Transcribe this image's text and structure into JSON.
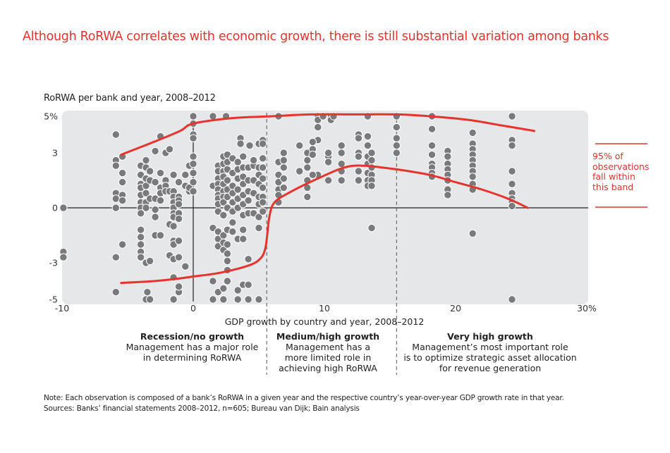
{
  "title": "Although RoRWA correlates with economic growth, there is still substantial variation among banks",
  "chart_data": {
    "type": "scatter",
    "title": "Although RoRWA correlates with economic growth, there is still substantial variation among banks",
    "ylabel": "RoRWA per bank and year, 2008–2012",
    "xlabel": "GDP growth by country and year, 2008–2012",
    "xlim": [
      -10,
      30
    ],
    "ylim": [
      -5,
      5
    ],
    "x_ticks": [
      {
        "value": -10,
        "label": "-10"
      },
      {
        "value": 0,
        "label": "0"
      },
      {
        "value": 10,
        "label": "10"
      },
      {
        "value": 20,
        "label": "20"
      },
      {
        "value": 30,
        "label": "30%"
      }
    ],
    "y_ticks": [
      {
        "value": 5,
        "label": "5%"
      },
      {
        "value": 3,
        "label": "3"
      },
      {
        "value": 0,
        "label": "0"
      },
      {
        "value": -3,
        "label": "-3"
      },
      {
        "value": -5,
        "label": "-5"
      }
    ],
    "grid": false,
    "zone_dividers_x": [
      5.6,
      15.5
    ],
    "colors": {
      "points": "#7a7a7c",
      "band": "#e8322c",
      "plot_bg": "#e6e7e8",
      "axis": "#222222"
    },
    "band_label": "95% of observations fall within this band",
    "band": {
      "upper": [
        [
          -5.5,
          2.9
        ],
        [
          -3,
          3.6
        ],
        [
          -1,
          4.2
        ],
        [
          0,
          4.6
        ],
        [
          3,
          4.9
        ],
        [
          6,
          5.0
        ],
        [
          9,
          5.1
        ],
        [
          12,
          5.1
        ],
        [
          15.5,
          5.1
        ],
        [
          18,
          5.0
        ],
        [
          21,
          4.8
        ],
        [
          23.5,
          4.5
        ],
        [
          26,
          4.2
        ]
      ],
      "lower": [
        [
          -5.5,
          -4.1
        ],
        [
          -3,
          -4.0
        ],
        [
          -1,
          -3.85
        ],
        [
          0,
          -3.75
        ],
        [
          2,
          -3.55
        ],
        [
          4,
          -3.2
        ],
        [
          5,
          -2.85
        ],
        [
          5.5,
          -2.2
        ],
        [
          5.8,
          -0.5
        ],
        [
          6.2,
          0.3
        ],
        [
          7.5,
          0.9
        ],
        [
          9.5,
          1.6
        ],
        [
          11.5,
          2.2
        ],
        [
          13,
          2.3
        ],
        [
          15.5,
          2.1
        ],
        [
          18,
          1.8
        ],
        [
          20,
          1.4
        ],
        [
          22,
          1.0
        ],
        [
          24,
          0.5
        ],
        [
          25.5,
          0.0
        ]
      ]
    },
    "points": [
      [
        -9.9,
        0
      ],
      [
        -9.9,
        -2.4
      ],
      [
        -9.9,
        -2.7
      ],
      [
        -5.9,
        4.0
      ],
      [
        -5.9,
        2.6
      ],
      [
        -5.9,
        2.3
      ],
      [
        -5.9,
        0.8
      ],
      [
        -5.9,
        0.5
      ],
      [
        -5.9,
        0
      ],
      [
        -5.9,
        -2.7
      ],
      [
        -5.9,
        -4.6
      ],
      [
        -5.4,
        2.8
      ],
      [
        -5.4,
        1.9
      ],
      [
        -5.4,
        1.4
      ],
      [
        -5.4,
        0.7
      ],
      [
        -5.4,
        0.4
      ],
      [
        -5.4,
        -2.0
      ],
      [
        -4.0,
        2.3
      ],
      [
        -4.0,
        1.8
      ],
      [
        -4.0,
        1.3
      ],
      [
        -4.0,
        1.1
      ],
      [
        -4.0,
        0.7
      ],
      [
        -4.0,
        0.3
      ],
      [
        -4.0,
        0
      ],
      [
        -4.0,
        -0.3
      ],
      [
        -4.0,
        -1.2
      ],
      [
        -4.0,
        -1.6
      ],
      [
        -4.0,
        -2.0
      ],
      [
        -4.0,
        -2.4
      ],
      [
        -4.0,
        -2.7
      ],
      [
        -3.6,
        2.6
      ],
      [
        -3.6,
        2.2
      ],
      [
        -3.6,
        1.6
      ],
      [
        -3.6,
        1.2
      ],
      [
        -3.6,
        0.8
      ],
      [
        -3.6,
        0.3
      ],
      [
        -3.6,
        0
      ],
      [
        -3.6,
        -3.0
      ],
      [
        -3.6,
        -5.0
      ],
      [
        -3.3,
        2.0
      ],
      [
        -3.3,
        1.5
      ],
      [
        -3.3,
        0.5
      ],
      [
        -3.3,
        -2.9
      ],
      [
        -3.3,
        -5.0
      ],
      [
        -3.5,
        -4.6
      ],
      [
        -2.9,
        3.1
      ],
      [
        -2.9,
        1.4
      ],
      [
        -2.9,
        0.5
      ],
      [
        -2.9,
        -0.1
      ],
      [
        -2.9,
        -0.5
      ],
      [
        -2.9,
        -1.5
      ],
      [
        -2.5,
        3.9
      ],
      [
        -2.5,
        1.9
      ],
      [
        -2.5,
        1.1
      ],
      [
        -2.5,
        0.8
      ],
      [
        -2.5,
        0.4
      ],
      [
        -2.5,
        -1.5
      ],
      [
        -2.1,
        3.0
      ],
      [
        -2.1,
        1.5
      ],
      [
        -2.1,
        1.2
      ],
      [
        -2.1,
        0.9
      ],
      [
        -1.8,
        3.2
      ],
      [
        -1.8,
        0.9
      ],
      [
        -1.8,
        -0.9
      ],
      [
        -1.8,
        -2.6
      ],
      [
        -1.5,
        1.8
      ],
      [
        -1.5,
        0.9
      ],
      [
        -1.5,
        0.6
      ],
      [
        -1.5,
        0.3
      ],
      [
        -1.5,
        0
      ],
      [
        -1.5,
        -0.3
      ],
      [
        -1.5,
        -0.5
      ],
      [
        -1.5,
        -1.0
      ],
      [
        -1.5,
        -1.8
      ],
      [
        -1.5,
        -2.0
      ],
      [
        -1.5,
        -2.8
      ],
      [
        -1.5,
        -3.8
      ],
      [
        -1.5,
        -5.0
      ],
      [
        -1.1,
        1.4
      ],
      [
        -1.1,
        0.6
      ],
      [
        -1.1,
        0.4
      ],
      [
        -1.1,
        0.2
      ],
      [
        -1.1,
        -0.3
      ],
      [
        -1.1,
        -0.6
      ],
      [
        -1.1,
        -1.8
      ],
      [
        -1.1,
        -2.7
      ],
      [
        -1.1,
        -4.6
      ],
      [
        -1.1,
        -4.3
      ],
      [
        -0.6,
        -3.2
      ],
      [
        -0.6,
        1.8
      ],
      [
        -0.6,
        1.2
      ],
      [
        -0.3,
        2.3
      ],
      [
        -0.3,
        0.9
      ],
      [
        -0.3,
        1.1
      ],
      [
        0,
        5.0
      ],
      [
        0,
        4.6
      ],
      [
        0,
        4.0
      ],
      [
        0,
        3.8
      ],
      [
        0,
        2.8
      ],
      [
        0,
        2.4
      ],
      [
        0,
        1.9
      ],
      [
        0,
        1.4
      ],
      [
        0,
        0.9
      ],
      [
        1.5,
        1.2
      ],
      [
        1.5,
        -1.1
      ],
      [
        1.5,
        -4.0
      ],
      [
        1.5,
        -5.0
      ],
      [
        1.9,
        2.3
      ],
      [
        1.9,
        2.0
      ],
      [
        1.9,
        1.6
      ],
      [
        1.9,
        1.3
      ],
      [
        1.9,
        1.0
      ],
      [
        1.9,
        0.7
      ],
      [
        1.9,
        0.5
      ],
      [
        1.9,
        0.2
      ],
      [
        1.9,
        -0.2
      ],
      [
        1.9,
        -1.3
      ],
      [
        1.9,
        -1.7
      ],
      [
        1.9,
        -2.1
      ],
      [
        1.9,
        -4.6
      ],
      [
        2.3,
        2.8
      ],
      [
        2.3,
        2.4
      ],
      [
        2.3,
        2.0
      ],
      [
        2.3,
        1.7
      ],
      [
        2.3,
        1.3
      ],
      [
        2.3,
        0.9
      ],
      [
        2.3,
        0.6
      ],
      [
        2.3,
        0.3
      ],
      [
        2.3,
        -0.4
      ],
      [
        2.3,
        -1.5
      ],
      [
        2.3,
        -1.9
      ],
      [
        2.3,
        -2.3
      ],
      [
        2.3,
        -4.4
      ],
      [
        2.3,
        -5.0
      ],
      [
        2.6,
        2.9
      ],
      [
        2.6,
        2.5
      ],
      [
        2.6,
        2.1
      ],
      [
        2.6,
        1.5
      ],
      [
        2.6,
        1.0
      ],
      [
        2.6,
        0.6
      ],
      [
        2.6,
        0
      ],
      [
        2.6,
        -1.2
      ],
      [
        2.6,
        -2.0
      ],
      [
        2.6,
        -2.5
      ],
      [
        2.6,
        -2.9
      ],
      [
        2.6,
        -3.4
      ],
      [
        2.6,
        -4.0
      ],
      [
        3.0,
        2.7
      ],
      [
        3.0,
        1.9
      ],
      [
        3.0,
        1.2
      ],
      [
        3.0,
        0.8
      ],
      [
        3.0,
        0.3
      ],
      [
        3.0,
        -0.2
      ],
      [
        3.0,
        -0.8
      ],
      [
        3.0,
        -1.3
      ],
      [
        3.4,
        2.5
      ],
      [
        3.4,
        2.1
      ],
      [
        3.4,
        1.6
      ],
      [
        3.4,
        1.0
      ],
      [
        3.4,
        0.5
      ],
      [
        3.4,
        0
      ],
      [
        3.4,
        -1.7
      ],
      [
        3.4,
        -4.5
      ],
      [
        3.4,
        -5.0
      ],
      [
        3.8,
        2.8
      ],
      [
        3.8,
        2.2
      ],
      [
        3.8,
        1.7
      ],
      [
        3.8,
        1.3
      ],
      [
        3.8,
        0.7
      ],
      [
        3.8,
        0.2
      ],
      [
        3.8,
        -0.4
      ],
      [
        3.8,
        -1.2
      ],
      [
        3.8,
        -1.7
      ],
      [
        3.8,
        -4.2
      ],
      [
        4.2,
        2.2
      ],
      [
        4.2,
        1.5
      ],
      [
        4.2,
        0.9
      ],
      [
        4.2,
        0.4
      ],
      [
        4.2,
        -0.3
      ],
      [
        4.2,
        -2.8
      ],
      [
        4.2,
        -4.2
      ],
      [
        4.2,
        -5.0
      ],
      [
        4.6,
        2.6
      ],
      [
        4.6,
        2.3
      ],
      [
        4.6,
        1.5
      ],
      [
        4.6,
        0.8
      ],
      [
        4.6,
        -0.3
      ],
      [
        5.0,
        2.2
      ],
      [
        5.0,
        1.8
      ],
      [
        5.0,
        1.3
      ],
      [
        5.0,
        0.6
      ],
      [
        5.0,
        0.2
      ],
      [
        5.0,
        -0.5
      ],
      [
        5.0,
        -1.1
      ],
      [
        5.0,
        -5.0
      ],
      [
        5.3,
        2.7
      ],
      [
        5.3,
        2.2
      ],
      [
        5.3,
        1.6
      ],
      [
        5.3,
        1.1
      ],
      [
        5.3,
        0.6
      ],
      [
        5.3,
        0.3
      ],
      [
        5.3,
        -0.2
      ],
      [
        3.6,
        3.8
      ],
      [
        3.6,
        3.5
      ],
      [
        4.3,
        3.4
      ],
      [
        5.0,
        3.5
      ],
      [
        5.3,
        3.7
      ],
      [
        5.3,
        3.5
      ],
      [
        4.6,
        2.6
      ],
      [
        1.5,
        5.0
      ],
      [
        2.5,
        5.0
      ],
      [
        6.5,
        5.0
      ],
      [
        6.5,
        2.5
      ],
      [
        6.5,
        1.8
      ],
      [
        6.5,
        1.4
      ],
      [
        6.5,
        1.0
      ],
      [
        6.5,
        0.7
      ],
      [
        6.5,
        0.3
      ],
      [
        6.9,
        3.0
      ],
      [
        6.9,
        2.6
      ],
      [
        6.9,
        2.2
      ],
      [
        6.9,
        1.6
      ],
      [
        6.9,
        1.1
      ],
      [
        8.1,
        2.0
      ],
      [
        8.1,
        3.4
      ],
      [
        8.7,
        3.0
      ],
      [
        8.7,
        2.6
      ],
      [
        8.7,
        2.2
      ],
      [
        8.7,
        1.5
      ],
      [
        8.7,
        1.1
      ],
      [
        8.7,
        0.6
      ],
      [
        9.5,
        5.0
      ],
      [
        9.5,
        4.8
      ],
      [
        9.5,
        4.4
      ],
      [
        9.5,
        3.7
      ],
      [
        9.5,
        1.8
      ],
      [
        9.1,
        3.6
      ],
      [
        9.1,
        3.2
      ],
      [
        9.1,
        2.9
      ],
      [
        9.1,
        1.8
      ],
      [
        10.5,
        5.0
      ],
      [
        10.5,
        4.8
      ],
      [
        10.7,
        5.0
      ],
      [
        9.9,
        5.0
      ],
      [
        10.3,
        2.8
      ],
      [
        10.3,
        2.5
      ],
      [
        10.3,
        3.0
      ],
      [
        10.3,
        1.5
      ],
      [
        11.3,
        3.4
      ],
      [
        11.3,
        3.0
      ],
      [
        11.3,
        2.4
      ],
      [
        11.3,
        2.0
      ],
      [
        11.3,
        1.5
      ],
      [
        12.6,
        4.0
      ],
      [
        12.6,
        3.8
      ],
      [
        12.6,
        3.0
      ],
      [
        12.6,
        2.8
      ],
      [
        12.6,
        2.0
      ],
      [
        12.6,
        1.5
      ],
      [
        13.3,
        3.9
      ],
      [
        13.3,
        3.4
      ],
      [
        13.3,
        2.8
      ],
      [
        13.3,
        2.4
      ],
      [
        13.3,
        1.9
      ],
      [
        13.3,
        1.5
      ],
      [
        13.3,
        1.2
      ],
      [
        13.6,
        3.0
      ],
      [
        13.6,
        2.6
      ],
      [
        13.6,
        2.2
      ],
      [
        13.6,
        1.8
      ],
      [
        13.6,
        1.5
      ],
      [
        13.6,
        1.2
      ],
      [
        13.6,
        -1.1
      ],
      [
        13.3,
        5.0
      ],
      [
        15.5,
        5.0
      ],
      [
        15.5,
        4.4
      ],
      [
        15.5,
        3.8
      ],
      [
        15.5,
        3.4
      ],
      [
        15.5,
        3.0
      ],
      [
        18.2,
        5.0
      ],
      [
        18.2,
        4.3
      ],
      [
        18.2,
        3.4
      ],
      [
        18.2,
        2.9
      ],
      [
        18.2,
        2.4
      ],
      [
        18.2,
        2.2
      ],
      [
        18.2,
        1.9
      ],
      [
        18.2,
        1.7
      ],
      [
        19.4,
        3.1
      ],
      [
        19.4,
        2.8
      ],
      [
        19.4,
        2.4
      ],
      [
        19.4,
        2.1
      ],
      [
        19.4,
        1.8
      ],
      [
        19.4,
        1.5
      ],
      [
        19.4,
        1.0
      ],
      [
        19.4,
        0.7
      ],
      [
        21.3,
        4.1
      ],
      [
        21.3,
        3.5
      ],
      [
        21.3,
        3.2
      ],
      [
        21.3,
        2.9
      ],
      [
        21.3,
        2.6
      ],
      [
        21.3,
        2.3
      ],
      [
        21.3,
        2.0
      ],
      [
        21.3,
        1.7
      ],
      [
        21.3,
        1.3
      ],
      [
        21.3,
        1.0
      ],
      [
        21.3,
        -1.4
      ],
      [
        24.3,
        5.0
      ],
      [
        24.3,
        3.7
      ],
      [
        24.3,
        3.4
      ],
      [
        24.3,
        2.0
      ],
      [
        24.3,
        1.3
      ],
      [
        24.3,
        0.8
      ],
      [
        24.3,
        0.5
      ],
      [
        24.3,
        0.3
      ],
      [
        24.3,
        0.1
      ],
      [
        24.3,
        -5.0
      ]
    ]
  },
  "zones": [
    {
      "title": "Recession/no growth",
      "lines": [
        "Management has a major role",
        "in determining RoRWA"
      ]
    },
    {
      "title": "Medium/high growth",
      "lines": [
        "Management has a",
        "more limited role in",
        "achieving high RoRWA"
      ]
    },
    {
      "title": "Very high growth",
      "lines": [
        "Management’s most important role",
        "is to optimize strategic asset allocation",
        "for revenue generation"
      ]
    }
  ],
  "band_note": [
    "95% of",
    "observations",
    "fall within",
    "this band"
  ],
  "footnote": {
    "note": "Note: Each observation is composed of a bank’s RoRWA in a given year and the respective country’s year-over-year GDP growth rate in that year.",
    "sources": "Sources: Banks’ financial statements 2008–2012, n=605; Bureau van Dijk; Bain analysis"
  }
}
